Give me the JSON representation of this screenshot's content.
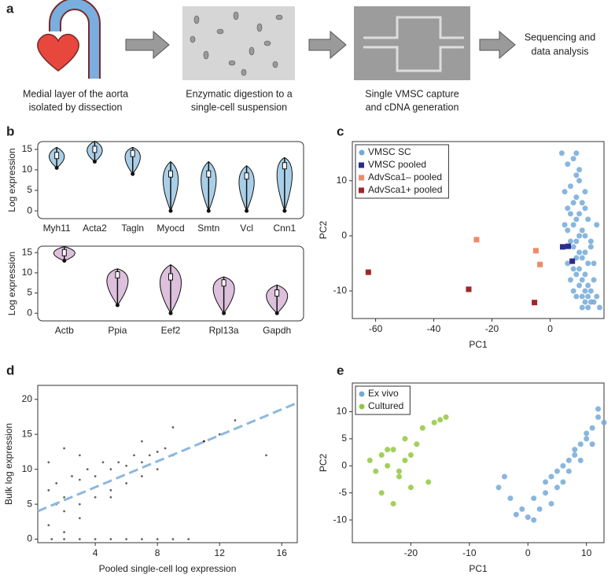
{
  "panel_labels": [
    "a",
    "b",
    "c",
    "d",
    "e"
  ],
  "workflow": {
    "captions": [
      [
        "Medial layer of the aorta",
        "isolated by dissection"
      ],
      [
        "Enzymatic digestion to a",
        "single-cell suspension"
      ],
      [
        "Single VMSC capture",
        "and cDNA generation"
      ]
    ],
    "final": [
      "Sequencing and",
      "data analysis"
    ]
  },
  "chart_data": [
    {
      "type": "violin",
      "ylabel": "Log expression",
      "categories": [
        "Myh11",
        "Acta2",
        "Tagln",
        "Myocd",
        "Smtn",
        "Vcl",
        "Cnn1"
      ],
      "values": [
        13.5,
        15,
        14,
        9,
        9,
        8.5,
        11
      ],
      "min": [
        10.5,
        12,
        9,
        0,
        0,
        0,
        0
      ],
      "max": [
        15.5,
        17,
        15.5,
        12,
        12,
        11,
        13
      ],
      "color": "#a9cfe8",
      "ylim": [
        -1.9,
        16.9
      ],
      "yticks": [
        0,
        5,
        10,
        15
      ]
    },
    {
      "type": "violin",
      "ylabel": "Log expression",
      "categories": [
        "Actb",
        "Ppia",
        "Eef2",
        "Rpl13a",
        "Gapdh"
      ],
      "values": [
        15,
        9.5,
        9,
        7.5,
        5
      ],
      "min": [
        13,
        2,
        0,
        0,
        0
      ],
      "max": [
        16.5,
        11,
        12,
        9,
        7
      ],
      "color": "#dcc0dc",
      "ylim": [
        -1.9,
        16.6
      ],
      "yticks": [
        0,
        5,
        10,
        15
      ]
    },
    {
      "type": "scatter",
      "xlabel": "PC1",
      "ylabel": "PC2",
      "xlim": [
        -68,
        18.5
      ],
      "ylim": [
        -15,
        17.1
      ],
      "xticks": [
        -60,
        -40,
        -20,
        0
      ],
      "yticks": [
        -10,
        0,
        10
      ],
      "legend": "upper left",
      "series": [
        {
          "name": "VMSC SC",
          "color": "#74a9d8",
          "marker": "circle",
          "x": [
            4,
            6,
            8,
            9,
            10,
            7,
            5,
            12,
            9,
            8,
            11,
            6,
            7,
            10,
            13,
            9,
            8,
            5,
            6,
            11,
            12,
            10,
            9,
            7,
            8,
            14,
            12,
            10,
            9,
            11,
            13,
            6,
            8,
            10,
            12,
            9,
            7,
            11,
            15,
            13,
            10,
            8,
            12,
            14,
            11,
            9,
            13,
            16,
            14,
            12,
            15,
            13,
            11,
            17,
            15,
            14,
            16,
            12,
            10,
            9
          ],
          "y": [
            15,
            13,
            14,
            11,
            10,
            9,
            8,
            8,
            7,
            6,
            6,
            5,
            4,
            4,
            3,
            3,
            2,
            2,
            1,
            1,
            0,
            0,
            -1,
            -1,
            -2,
            -2,
            -3,
            -3,
            -4,
            -4,
            -5,
            -5,
            -6,
            -6,
            -7,
            -7,
            -8,
            -8,
            -8,
            -9,
            -9,
            -10,
            -10,
            -10,
            -11,
            -11,
            -11,
            -11,
            -12,
            -12,
            -12,
            -13,
            -13,
            -13,
            -5,
            -1,
            2,
            5,
            12,
            15
          ]
        },
        {
          "name": "VMSC pooled",
          "color": "#2b2c8c",
          "marker": "square",
          "x": [
            4.3,
            6.2,
            7.6
          ],
          "y": [
            -2,
            -1.9,
            -4.6
          ]
        },
        {
          "name": "AdvSca1– pooled",
          "color": "#f08a6a",
          "marker": "square",
          "x": [
            -25.3,
            -4.9,
            -3.5
          ],
          "y": [
            -0.7,
            -2.7,
            -5.2
          ]
        },
        {
          "name": "AdvSca1+ pooled",
          "color": "#a0262a",
          "marker": "square",
          "x": [
            -62.5,
            -28,
            -5.4
          ],
          "y": [
            -6.6,
            -9.7,
            -12.1
          ]
        }
      ]
    },
    {
      "type": "scatter",
      "xlabel": "Pooled single-cell log expression",
      "ylabel": "Bulk log expression",
      "xlim": [
        0.3,
        17
      ],
      "ylim": [
        -0.5,
        22
      ],
      "xticks": [
        4,
        8,
        12,
        16
      ],
      "yticks": [
        0,
        5,
        10,
        15,
        20
      ],
      "series": [
        {
          "color": "#000000",
          "marker": "dot",
          "x": [
            1,
            1.5,
            2,
            2.5,
            3,
            3.5,
            4,
            4.5,
            5,
            5.5,
            6,
            6.5,
            7,
            7.5,
            8,
            8.5,
            9,
            10,
            11,
            12,
            1.2,
            2,
            3,
            4,
            5,
            6,
            7,
            8,
            9,
            10,
            2,
            3,
            4,
            5,
            6,
            7,
            8,
            1,
            2,
            3,
            1.5,
            3,
            5,
            7,
            9,
            11,
            13,
            15,
            1,
            2
          ],
          "y": [
            7,
            8,
            6,
            9,
            8.5,
            10,
            9,
            11,
            10,
            11,
            10.5,
            12,
            11,
            12,
            12.5,
            13,
            12,
            13,
            14,
            15,
            0,
            0,
            0,
            0,
            0,
            0,
            0,
            0,
            0,
            0,
            4,
            5,
            6,
            7,
            8,
            9,
            10,
            11,
            13,
            12,
            5,
            3,
            6,
            14,
            16,
            14,
            17,
            12,
            2,
            1
          ]
        }
      ],
      "fit_line": {
        "x": [
          0.3,
          17
        ],
        "y": [
          4,
          19.5
        ],
        "color": "#8db8de"
      }
    },
    {
      "type": "scatter",
      "xlabel": "PC1",
      "ylabel": "PC2",
      "xlim": [
        -30,
        13
      ],
      "ylim": [
        -14.2,
        15.3
      ],
      "xticks": [
        -20,
        -10,
        0,
        10
      ],
      "yticks": [
        -10,
        -5,
        0,
        5,
        10
      ],
      "legend": "upper left",
      "series": [
        {
          "name": "Ex vivo",
          "color": "#74a9d8",
          "marker": "circle",
          "x": [
            -5,
            -4,
            -3,
            -2,
            -1,
            0,
            1,
            1,
            2,
            3,
            3,
            4,
            4,
            5,
            5,
            6,
            6,
            7,
            7,
            8,
            8,
            9,
            9,
            10,
            10,
            11,
            11,
            12,
            12,
            13
          ],
          "y": [
            -4,
            -2,
            -6,
            -9,
            -8,
            -9.5,
            -10,
            -6,
            -8,
            -5,
            -3,
            -7,
            -2,
            -4,
            -1,
            -3,
            0,
            1,
            -1,
            2,
            3,
            4,
            1,
            5,
            6,
            7,
            4,
            9,
            10.5,
            8
          ]
        },
        {
          "name": "Cultured",
          "color": "#92c83e",
          "marker": "circle",
          "x": [
            -27,
            -26,
            -25,
            -24,
            -23,
            -22,
            -21,
            -20,
            -25,
            -23,
            -21,
            -19,
            -18,
            -22,
            -24,
            -20,
            -17,
            -16,
            -15,
            -14
          ],
          "y": [
            1,
            -1,
            2,
            0,
            3,
            -2,
            1,
            -4,
            -5,
            -7,
            5,
            4,
            7,
            -1,
            3,
            2,
            -3,
            8,
            8.5,
            9
          ]
        }
      ]
    }
  ]
}
